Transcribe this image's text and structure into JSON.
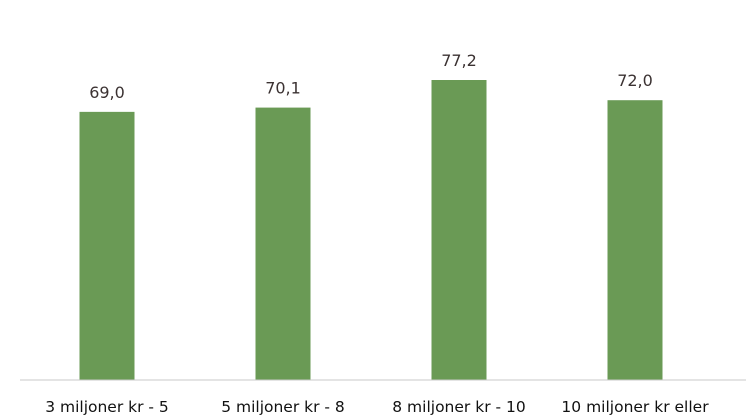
{
  "chart_data": {
    "type": "bar",
    "title": "",
    "xlabel": "",
    "ylabel": "",
    "categories": [
      "3 miljoner kr - 5",
      "5 miljoner kr - 8",
      "8 miljoner kr - 10",
      "10 miljoner kr eller"
    ],
    "values": [
      69.0,
      70.1,
      77.2,
      72.0
    ],
    "data_labels": [
      "69,0",
      "70,1",
      "77,2",
      "72,0"
    ],
    "ylim": [
      0,
      80
    ],
    "grid": false,
    "legend": "none",
    "bar_color": "#6a9a55",
    "axis_color": "#c8c8c8"
  }
}
